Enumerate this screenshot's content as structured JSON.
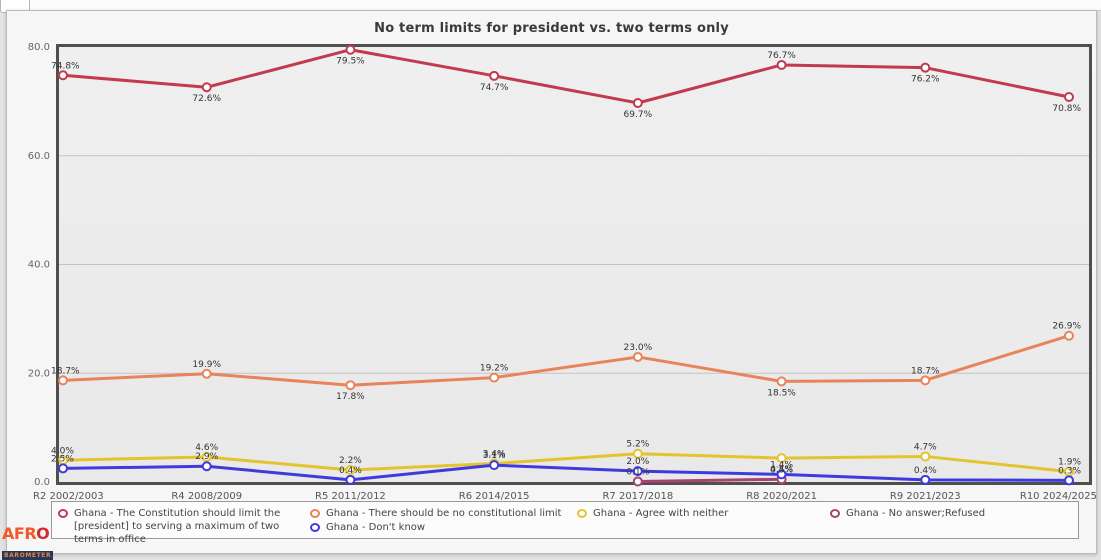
{
  "page": {
    "note": "Afrobarometer data portal chart view"
  },
  "logo": {
    "afr": "AFR",
    "o": "O",
    "barometer": "BAROMETER"
  },
  "chart_data": {
    "type": "line",
    "title": "No term limits for president vs. two terms only",
    "categories": [
      "R2 2002/2003",
      "R4 2008/2009",
      "R5 2011/2012",
      "R6 2014/2015",
      "R7 2017/2018",
      "R8 2020/2021",
      "R9 2021/2023",
      "R10 2024/2025"
    ],
    "ylim": [
      0,
      80
    ],
    "yticks": [
      "80.0",
      "60.0",
      "40.0",
      "20.0",
      "0.0"
    ],
    "grid": true,
    "legend_position": "bottom",
    "marker_style": "white-filled ring",
    "series": [
      {
        "name": "Ghana - The Constitution should limit the [president] to serving a maximum of two terms in office",
        "color": "#c23a4e",
        "values": [
          74.8,
          72.6,
          79.5,
          74.7,
          69.7,
          76.7,
          76.2,
          70.8
        ],
        "labels": [
          "74.8%",
          "72.6%",
          "79.5%",
          "74.7%",
          "69.7%",
          "76.7%",
          "76.2%",
          "70.8%"
        ],
        "label_side": [
          "above",
          "below",
          "below",
          "below",
          "below",
          "above",
          "below",
          "below"
        ]
      },
      {
        "name": "Ghana - There should be no constitutional limit",
        "color": "#e8845c",
        "values": [
          18.7,
          19.9,
          17.8,
          19.2,
          23.0,
          18.5,
          18.7,
          26.9
        ],
        "labels": [
          "18.7%",
          "19.9%",
          "17.8%",
          "19.2%",
          "23.0%",
          "18.5%",
          "18.7%",
          "26.9%"
        ],
        "label_side": [
          "above",
          "above",
          "below",
          "above",
          "above",
          "below",
          "above",
          "above"
        ]
      },
      {
        "name": "Ghana - Agree with neither",
        "color": "#e3c42e",
        "values": [
          4.0,
          4.6,
          2.2,
          3.4,
          5.2,
          4.4,
          4.7,
          1.9
        ],
        "labels": [
          "4.0%",
          "4.6%",
          "2.2%",
          "3.4%",
          "5.2%",
          "4.4%",
          "4.7%",
          "1.9%"
        ],
        "label_side": [
          "above",
          "above",
          "above",
          "above",
          "above",
          "below",
          "above",
          "above"
        ]
      },
      {
        "name": "Ghana - Don't know",
        "color": "#3f3add",
        "values": [
          2.5,
          2.9,
          0.4,
          3.1,
          2.0,
          1.4,
          0.4,
          0.3
        ],
        "labels": [
          "2.5%",
          "2.9%",
          "0.4%",
          "3.1%",
          "2.0%",
          "1.4%",
          "0.4%",
          "0.3%"
        ],
        "label_side": [
          "above",
          "above",
          "above",
          "above",
          "above",
          "above",
          "above",
          "above"
        ]
      },
      {
        "name": "Ghana - No answer;Refused",
        "color": "#a8436f",
        "values": [
          null,
          null,
          null,
          null,
          0.1,
          0.5,
          null,
          null
        ],
        "labels": [
          null,
          null,
          null,
          null,
          "0.1%",
          "0.5%",
          null,
          null
        ],
        "label_side": [
          null,
          null,
          null,
          null,
          "above",
          "above",
          null,
          null
        ]
      }
    ]
  },
  "legend": {
    "columns": [
      {
        "items": [
          {
            "series": 0
          }
        ]
      },
      {
        "items": [
          {
            "series": 1
          },
          {
            "series": 3
          }
        ]
      },
      {
        "items": [
          {
            "series": 2
          }
        ]
      },
      {
        "items": [
          {
            "series": 4
          }
        ]
      }
    ]
  }
}
